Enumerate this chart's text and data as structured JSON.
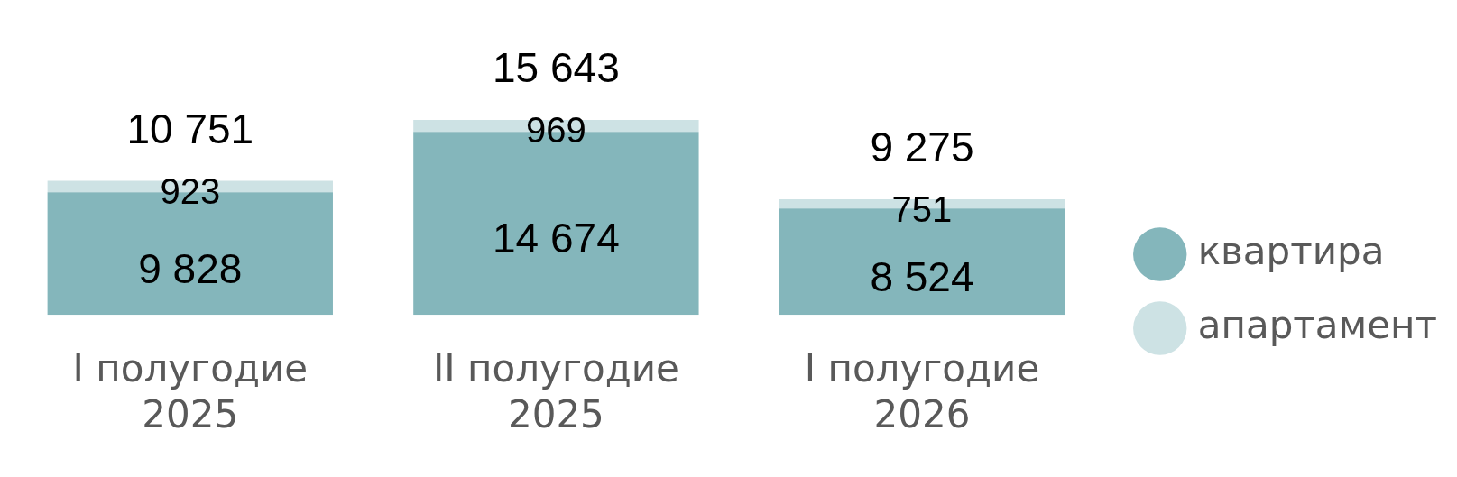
{
  "chart_data": {
    "type": "bar",
    "stacked": true,
    "categories": [
      "I полугодие 2025",
      "II полугодие 2025",
      "I полугодие 2026"
    ],
    "series": [
      {
        "name": "квартира",
        "color": "#84b6bb",
        "values": [
          9828,
          14674,
          8524
        ],
        "value_labels": [
          "9 828",
          "14 674",
          "8 524"
        ]
      },
      {
        "name": "апартамент",
        "color": "#cde2e4",
        "values": [
          923,
          969,
          751
        ],
        "value_labels": [
          "923",
          "969",
          "751"
        ]
      }
    ],
    "totals": [
      "10 751",
      "15 643",
      "9 275"
    ],
    "legend": "right",
    "grid": false
  }
}
